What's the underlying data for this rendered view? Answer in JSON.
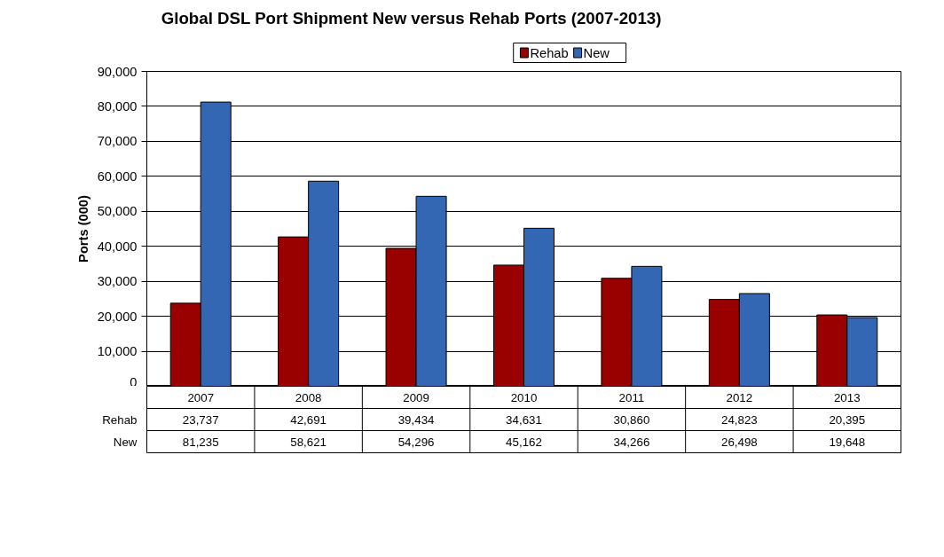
{
  "chart_data": {
    "type": "bar",
    "title": "Global DSL Port Shipment New versus Rehab Ports (2007-2013)",
    "ylabel": "Ports (000)",
    "categories": [
      "2007",
      "2008",
      "2009",
      "2010",
      "2011",
      "2012",
      "2013"
    ],
    "series": [
      {
        "name": "Rehab",
        "color": "#990000",
        "values": [
          23737,
          42691,
          39434,
          34631,
          30860,
          24823,
          20395
        ],
        "value_labels": [
          "23,737",
          "42,691",
          "39,434",
          "34,631",
          "30,860",
          "24,823",
          "20,395"
        ]
      },
      {
        "name": "New",
        "color": "#3366b3",
        "values": [
          81235,
          58621,
          54296,
          45162,
          34266,
          26498,
          19648
        ],
        "value_labels": [
          "81,235",
          "58,621",
          "54,296",
          "45,162",
          "34,266",
          "26,498",
          "19,648"
        ]
      }
    ],
    "ylim": [
      0,
      90000
    ],
    "yticks": [
      {
        "value": 0,
        "label": "0"
      },
      {
        "value": 10000,
        "label": "10,000"
      },
      {
        "value": 20000,
        "label": "20,000"
      },
      {
        "value": 30000,
        "label": "30,000"
      },
      {
        "value": 40000,
        "label": "40,000"
      },
      {
        "value": 50000,
        "label": "50,000"
      },
      {
        "value": 60000,
        "label": "60,000"
      },
      {
        "value": 70000,
        "label": "70,000"
      },
      {
        "value": 80000,
        "label": "80,000"
      },
      {
        "value": 90000,
        "label": "90,000"
      }
    ],
    "grid": "y",
    "legend": "top"
  }
}
